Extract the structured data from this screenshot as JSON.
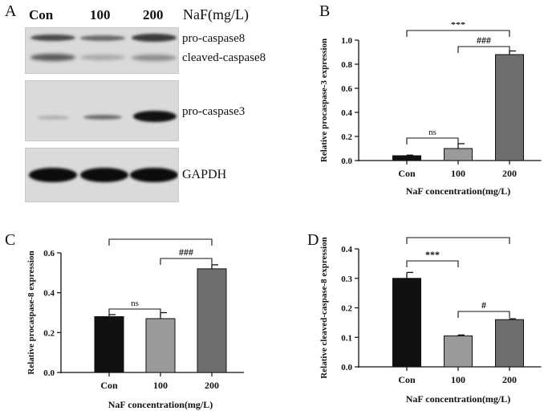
{
  "panel_letters": [
    "A",
    "B",
    "C",
    "D"
  ],
  "western_blot": {
    "lanes": [
      "Con",
      "100",
      "200"
    ],
    "header": "NaF(mg/L)",
    "labels": {
      "pro_caspase8": "pro-caspase8",
      "cleaved_caspase8": "cleaved-caspase8",
      "pro_caspase3": "pro-caspase3",
      "gapdh": "GAPDH"
    }
  },
  "chart_data": [
    {
      "panel": "B",
      "type": "bar",
      "categories": [
        "Con",
        "100",
        "200"
      ],
      "values": [
        0.04,
        0.1,
        0.88
      ],
      "errors": [
        0.005,
        0.04,
        0.03
      ],
      "colors": [
        "#111111",
        "#9a9a9a",
        "#6e6e6e"
      ],
      "xlabel": "NaF concentration(mg/L)",
      "ylabel": "Relative procaspase-3 expression",
      "ylim": [
        0,
        1.0
      ],
      "yticks": [
        "0.0",
        "0.2",
        "0.4",
        "0.6",
        "0.8",
        "1.0"
      ],
      "annotations": [
        {
          "from": 0,
          "to": 2,
          "text": "***"
        },
        {
          "from": 1,
          "to": 2,
          "text": "###"
        },
        {
          "from": 0,
          "to": 1,
          "text": "ns"
        }
      ]
    },
    {
      "panel": "C",
      "type": "bar",
      "categories": [
        "Con",
        "100",
        "200"
      ],
      "values": [
        0.28,
        0.27,
        0.52
      ],
      "errors": [
        0.01,
        0.03,
        0.02
      ],
      "colors": [
        "#111111",
        "#9a9a9a",
        "#6e6e6e"
      ],
      "xlabel": "NaF concentration(mg/L)",
      "ylabel": "Relative procaspase-8 expression",
      "ylim": [
        0,
        0.6
      ],
      "yticks": [
        "0.0",
        "0.2",
        "0.4",
        "0.6"
      ],
      "annotations": [
        {
          "from": 0,
          "to": 2,
          "text": "***"
        },
        {
          "from": 1,
          "to": 2,
          "text": "###"
        },
        {
          "from": 0,
          "to": 1,
          "text": "ns"
        }
      ]
    },
    {
      "panel": "D",
      "type": "bar",
      "categories": [
        "Con",
        "100",
        "200"
      ],
      "values": [
        0.3,
        0.105,
        0.16
      ],
      "errors": [
        0.02,
        0.003,
        0.003
      ],
      "colors": [
        "#111111",
        "#9a9a9a",
        "#6e6e6e"
      ],
      "xlabel": "NaF concentration(mg/L)",
      "ylabel": "Relative cleaved-caspase-8 expression",
      "ylim": [
        0,
        0.4
      ],
      "yticks": [
        "0.0",
        "0.1",
        "0.2",
        "0.3",
        "0.4"
      ],
      "annotations": [
        {
          "from": 0,
          "to": 2,
          "text": "***"
        },
        {
          "from": 0,
          "to": 1,
          "text": "***"
        },
        {
          "from": 1,
          "to": 2,
          "text": "#"
        }
      ]
    }
  ]
}
